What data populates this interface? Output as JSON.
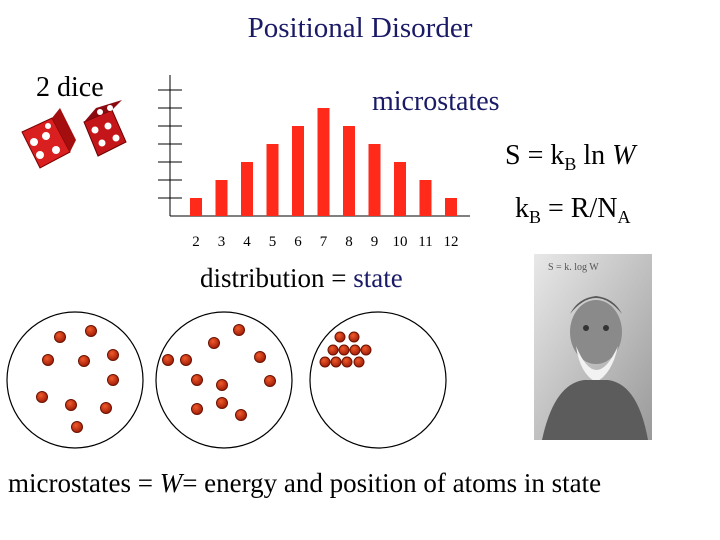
{
  "title": "Positional Disorder",
  "dice_label": "2 dice",
  "histogram_label": "microstates",
  "equation1": {
    "s": "S = k",
    "sub": "B",
    "ln": " ln ",
    "w": "W"
  },
  "equation2": {
    "k": "k",
    "sub": "B",
    "rest": " = R/N",
    "sub2": "A"
  },
  "distribution": {
    "text": "distribution = ",
    "state": "state"
  },
  "bottom": {
    "a": "microstates = ",
    "w": "W",
    "b": "= energy and position of atoms in state"
  },
  "photo_caption": "S = k. log W",
  "chart_data": {
    "type": "bar",
    "categories": [
      "2",
      "3",
      "4",
      "5",
      "6",
      "7",
      "8",
      "9",
      "10",
      "11",
      "12"
    ],
    "values": [
      1,
      2,
      3,
      4,
      5,
      6,
      5,
      4,
      3,
      2,
      1
    ],
    "title": "microstates",
    "xlabel": "",
    "ylabel": "",
    "ylim": [
      0,
      7
    ],
    "bar_color": "#ff2a1a"
  },
  "colors": {
    "title": "#1a1a66",
    "atom": "#c42b10",
    "atom_edge": "#6b1200"
  }
}
